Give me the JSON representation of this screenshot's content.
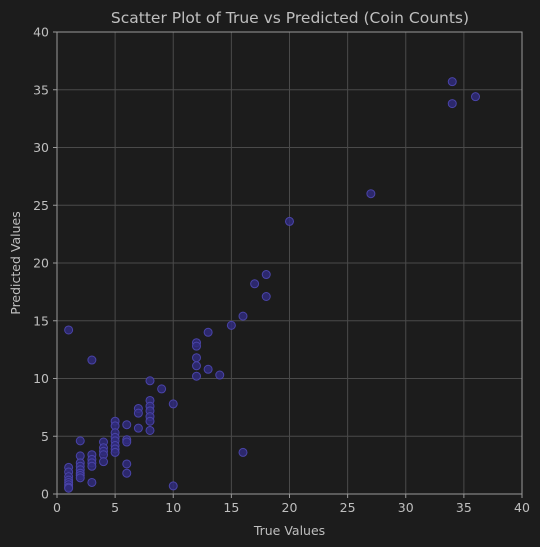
{
  "chart_data": {
    "type": "scatter",
    "title": "Scatter Plot of True vs Predicted (Coin Counts)",
    "xlabel": "True Values",
    "ylabel": "Predicted Values",
    "xlim": [
      0,
      40
    ],
    "ylim": [
      0,
      40
    ],
    "xticks": [
      0,
      5,
      10,
      15,
      20,
      25,
      30,
      35,
      40
    ],
    "yticks": [
      0,
      5,
      10,
      15,
      20,
      25,
      30,
      35,
      40
    ],
    "grid": true,
    "colors": {
      "background": "#1c1c1c",
      "point_fill": "#2f2a7a",
      "point_stroke": "#4a44a8"
    },
    "points": [
      {
        "x": 1,
        "y": 14.2
      },
      {
        "x": 1,
        "y": 2.3
      },
      {
        "x": 1,
        "y": 1.9
      },
      {
        "x": 1,
        "y": 1.5
      },
      {
        "x": 1,
        "y": 1.2
      },
      {
        "x": 1,
        "y": 1.0
      },
      {
        "x": 1,
        "y": 0.8
      },
      {
        "x": 1,
        "y": 0.6
      },
      {
        "x": 1,
        "y": 0.5
      },
      {
        "x": 2,
        "y": 4.6
      },
      {
        "x": 2,
        "y": 3.3
      },
      {
        "x": 2,
        "y": 2.7
      },
      {
        "x": 2,
        "y": 2.4
      },
      {
        "x": 2,
        "y": 2.1
      },
      {
        "x": 2,
        "y": 1.8
      },
      {
        "x": 2,
        "y": 1.6
      },
      {
        "x": 2,
        "y": 1.4
      },
      {
        "x": 3,
        "y": 11.6
      },
      {
        "x": 3,
        "y": 3.4
      },
      {
        "x": 3,
        "y": 3.0
      },
      {
        "x": 3,
        "y": 2.7
      },
      {
        "x": 3,
        "y": 2.4
      },
      {
        "x": 3,
        "y": 1.0
      },
      {
        "x": 4,
        "y": 4.5
      },
      {
        "x": 4,
        "y": 4.0
      },
      {
        "x": 4,
        "y": 3.7
      },
      {
        "x": 4,
        "y": 3.4
      },
      {
        "x": 4,
        "y": 2.8
      },
      {
        "x": 5,
        "y": 6.3
      },
      {
        "x": 5,
        "y": 5.9
      },
      {
        "x": 5,
        "y": 5.3
      },
      {
        "x": 5,
        "y": 4.9
      },
      {
        "x": 5,
        "y": 4.6
      },
      {
        "x": 5,
        "y": 4.2
      },
      {
        "x": 5,
        "y": 3.9
      },
      {
        "x": 5,
        "y": 3.6
      },
      {
        "x": 6,
        "y": 6.0
      },
      {
        "x": 6,
        "y": 4.7
      },
      {
        "x": 6,
        "y": 4.5
      },
      {
        "x": 6,
        "y": 2.6
      },
      {
        "x": 6,
        "y": 1.8
      },
      {
        "x": 7,
        "y": 7.4
      },
      {
        "x": 7,
        "y": 7.0
      },
      {
        "x": 7,
        "y": 5.7
      },
      {
        "x": 8,
        "y": 9.8
      },
      {
        "x": 8,
        "y": 8.1
      },
      {
        "x": 8,
        "y": 7.6
      },
      {
        "x": 8,
        "y": 7.2
      },
      {
        "x": 8,
        "y": 6.7
      },
      {
        "x": 8,
        "y": 6.3
      },
      {
        "x": 8,
        "y": 5.5
      },
      {
        "x": 9,
        "y": 9.1
      },
      {
        "x": 10,
        "y": 7.8
      },
      {
        "x": 10,
        "y": 0.7
      },
      {
        "x": 12,
        "y": 13.1
      },
      {
        "x": 12,
        "y": 12.8
      },
      {
        "x": 12,
        "y": 11.8
      },
      {
        "x": 12,
        "y": 11.1
      },
      {
        "x": 12,
        "y": 10.2
      },
      {
        "x": 13,
        "y": 14.0
      },
      {
        "x": 13,
        "y": 10.8
      },
      {
        "x": 14,
        "y": 10.3
      },
      {
        "x": 15,
        "y": 14.6
      },
      {
        "x": 16,
        "y": 15.4
      },
      {
        "x": 16,
        "y": 3.6
      },
      {
        "x": 17,
        "y": 18.2
      },
      {
        "x": 18,
        "y": 19.0
      },
      {
        "x": 18,
        "y": 17.1
      },
      {
        "x": 20,
        "y": 23.6
      },
      {
        "x": 27,
        "y": 26.0
      },
      {
        "x": 34,
        "y": 35.7
      },
      {
        "x": 34,
        "y": 33.8
      },
      {
        "x": 36,
        "y": 34.4
      }
    ]
  }
}
